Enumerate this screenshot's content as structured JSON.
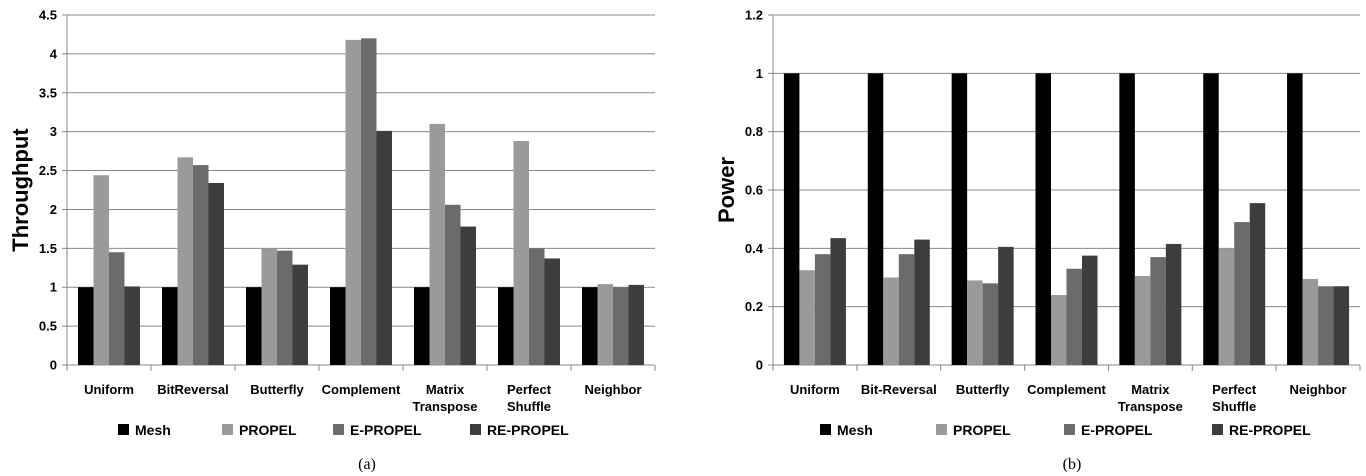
{
  "chart_data": [
    {
      "type": "bar",
      "ylabel": "Throughput",
      "caption": "(a)",
      "ylim": [
        0,
        4.5
      ],
      "yticks": [
        "0",
        "0.5",
        "1",
        "1.5",
        "2",
        "2.5",
        "3",
        "3.5",
        "4",
        "4.5"
      ],
      "grid": true,
      "legend_position": "bottom",
      "categories": [
        [
          "Uniform"
        ],
        [
          "BitReversal"
        ],
        [
          "Butterfly"
        ],
        [
          "Complement"
        ],
        [
          "Matrix",
          "Transpose"
        ],
        [
          "Perfect",
          "Shuffle"
        ],
        [
          "Neighbor"
        ]
      ],
      "series": [
        {
          "name": "Mesh",
          "color": "#000000",
          "values": [
            1,
            1,
            1,
            1,
            1,
            1,
            1
          ]
        },
        {
          "name": "PROPEL",
          "color": "#9a9a9a",
          "values": [
            2.44,
            2.67,
            1.5,
            4.18,
            3.1,
            2.88,
            1.04
          ]
        },
        {
          "name": "E-PROPEL",
          "color": "#6b6b6b",
          "values": [
            1.45,
            2.57,
            1.47,
            4.2,
            2.06,
            1.5,
            1.0
          ]
        },
        {
          "name": "RE-PROPEL",
          "color": "#3d3d3d",
          "values": [
            1.01,
            2.34,
            1.29,
            3.01,
            1.78,
            1.37,
            1.03
          ]
        }
      ]
    },
    {
      "type": "bar",
      "ylabel": "Power",
      "caption": "(b)",
      "ylim": [
        0,
        1.2
      ],
      "yticks": [
        "0",
        "0.2",
        "0.4",
        "0.6",
        "0.8",
        "1",
        "1.2"
      ],
      "grid": true,
      "legend_position": "bottom",
      "categories": [
        [
          "Uniform"
        ],
        [
          "Bit-Reversal"
        ],
        [
          "Butterfly"
        ],
        [
          "Complement"
        ],
        [
          "Matrix",
          "Transpose"
        ],
        [
          "Perfect",
          "Shuffle"
        ],
        [
          "Neighbor"
        ]
      ],
      "series": [
        {
          "name": "Mesh",
          "color": "#000000",
          "values": [
            1,
            1,
            1,
            1,
            1,
            1,
            1
          ]
        },
        {
          "name": "PROPEL",
          "color": "#9a9a9a",
          "values": [
            0.325,
            0.3,
            0.29,
            0.24,
            0.305,
            0.4,
            0.295
          ]
        },
        {
          "name": "E-PROPEL",
          "color": "#6b6b6b",
          "values": [
            0.38,
            0.38,
            0.28,
            0.33,
            0.37,
            0.49,
            0.27
          ]
        },
        {
          "name": "RE-PROPEL",
          "color": "#3d3d3d",
          "values": [
            0.435,
            0.43,
            0.405,
            0.375,
            0.415,
            0.555,
            0.27
          ]
        }
      ]
    }
  ]
}
